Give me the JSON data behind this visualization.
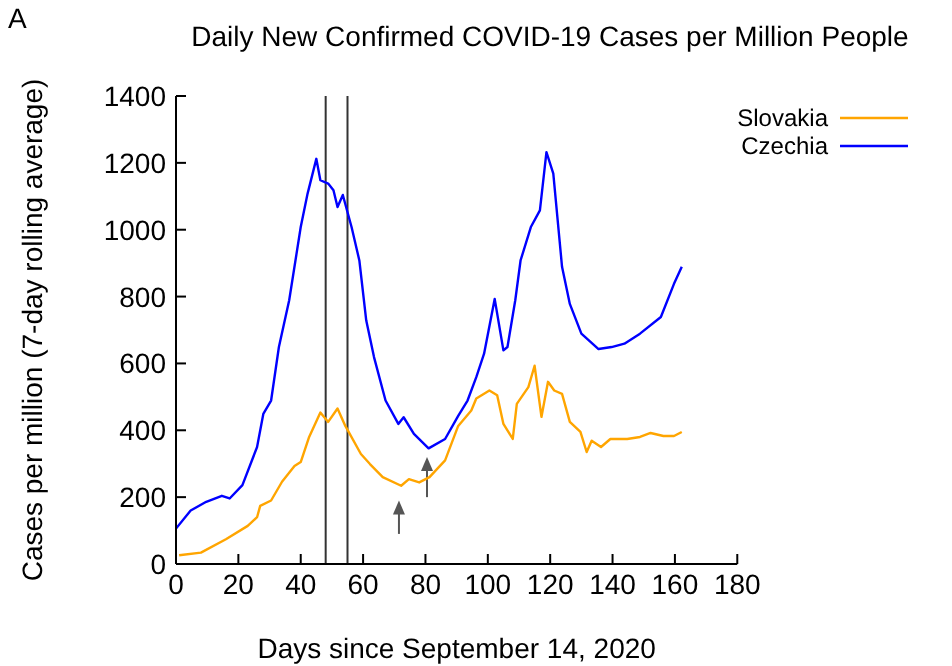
{
  "chart_data": {
    "type": "line",
    "title": "Daily New Confirmed COVID-19 Cases per Million People",
    "xlabel": "Days since September 14, 2020",
    "ylabel": "Cases per million (7-day rolling average)",
    "annotations": [
      "A"
    ],
    "xlim": [
      0,
      180
    ],
    "xticks": [
      0,
      20,
      40,
      60,
      80,
      100,
      120,
      140,
      160,
      180
    ],
    "ylim": [
      0,
      1400
    ],
    "yticks": [
      0,
      200,
      400,
      600,
      800,
      1000,
      1200,
      1400
    ],
    "legend": "top right",
    "marker": "none",
    "line_style": "solid",
    "ref_lines": [
      {
        "axis": "x",
        "value": 48,
        "color": "#333333"
      },
      {
        "axis": "x",
        "value": 55,
        "color": "#333333"
      }
    ],
    "series": [
      {
        "name": "Slovakia",
        "color": "#ffa500",
        "x": [
          1,
          8,
          16,
          23,
          26,
          27,
          30.5,
          34,
          38,
          40,
          42.7,
          46.3,
          48.8,
          51.8,
          54.3,
          59.3,
          62.2,
          66.3,
          72.2,
          74.7,
          78,
          81.3,
          86.3,
          90.5,
          94.7,
          96.3,
          100.5,
          103,
          105,
          108,
          109.3,
          113,
          115,
          117.2,
          119.3,
          121.3,
          123.8,
          126.3,
          129.7,
          131.7,
          133.3,
          136.3,
          139.3,
          144.7,
          148.8,
          152.2,
          156.3,
          159.7,
          162.2
        ],
        "values": [
          26,
          34,
          74,
          114,
          140,
          174,
          190,
          246,
          293,
          305,
          380,
          453,
          425,
          465,
          413,
          329,
          299,
          260,
          234,
          254,
          244,
          260,
          310,
          413,
          459,
          495,
          519,
          505,
          419,
          374,
          479,
          529,
          593,
          440,
          545,
          519,
          509,
          425,
          395,
          335,
          369,
          350,
          374,
          374,
          380,
          392,
          383,
          383,
          395
        ]
      },
      {
        "name": "Czechia",
        "color": "#0000ff",
        "x": [
          0,
          4.7,
          9.7,
          14.7,
          17.2,
          21.3,
          26,
          28,
          30.5,
          33,
          36.3,
          40,
          42.2,
          45,
          46.3,
          48.8,
          50.5,
          51.8,
          53.5,
          56.3,
          58.8,
          61,
          63.5,
          67.2,
          71.3,
          73,
          76.3,
          81,
          86.3,
          90.5,
          93.5,
          96.3,
          98.8,
          102.2,
          105,
          106.3,
          108.8,
          110.5,
          113.8,
          116.7,
          118.8,
          121,
          123.8,
          126.3,
          130,
          135.5,
          139.7,
          143.8,
          148.8,
          155.5,
          159.7,
          162.2
        ],
        "values": [
          106,
          160,
          186,
          204,
          196,
          236,
          350,
          449,
          489,
          649,
          789,
          1008,
          1108,
          1212,
          1148,
          1138,
          1118,
          1068,
          1104,
          1008,
          908,
          729,
          619,
          489,
          419,
          439,
          389,
          346,
          374,
          443,
          489,
          559,
          629,
          793,
          639,
          649,
          789,
          908,
          1008,
          1058,
          1232,
          1168,
          889,
          778,
          689,
          643,
          649,
          659,
          689,
          739,
          838,
          889
        ]
      }
    ]
  }
}
